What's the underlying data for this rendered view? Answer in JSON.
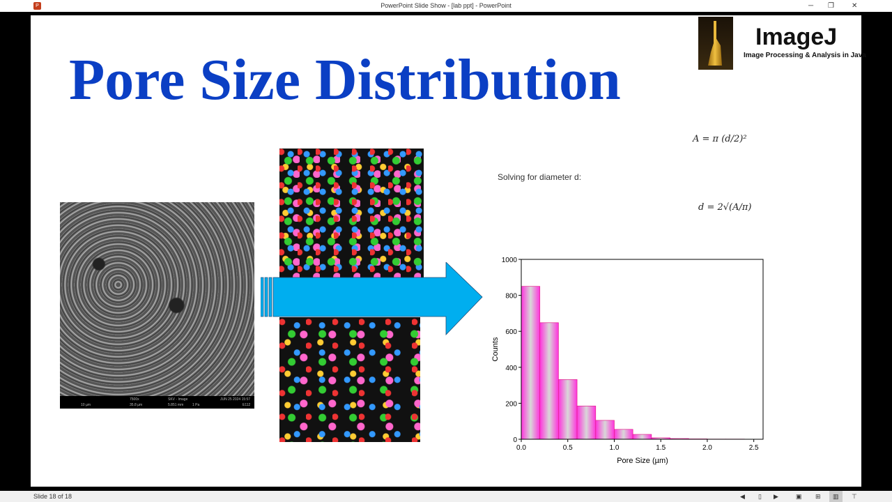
{
  "window": {
    "title": "PowerPoint Slide Show - [lab ppt] - PowerPoint",
    "app_icon": "P"
  },
  "slide": {
    "title": "Pore Size Distribution",
    "logo": {
      "name": "ImageJ",
      "subtitle": "Image Processing & Analysis in Java"
    },
    "formula_area": "A = π (d/2)²",
    "solving_text": "Solving for diameter d:",
    "formula_diameter": "d = 2√(A/π)",
    "sem_info": {
      "scale": "10 µm",
      "mag": "7500x",
      "hfw": "35.8 µm",
      "mode": "SKV - Image",
      "wd": "5.851 mm",
      "pressure": "1 Pa",
      "date": "JUN 25 2024 15:57",
      "id": "E112"
    }
  },
  "chart_data": {
    "type": "bar",
    "xlabel": "Pore Size (µm)",
    "ylabel": "Counts",
    "xlim": [
      0,
      2.6
    ],
    "ylim": [
      0,
      1000
    ],
    "xticks": [
      "0.0",
      "0.5",
      "1.0",
      "1.5",
      "2.0",
      "2.5"
    ],
    "yticks": [
      "0",
      "200",
      "400",
      "600",
      "800",
      "1000"
    ],
    "bin_width": 0.2,
    "bin_starts": [
      0.0,
      0.2,
      0.4,
      0.6,
      0.8,
      1.0,
      1.2,
      1.4,
      1.6,
      1.8,
      2.0,
      2.2
    ],
    "values": [
      850,
      648,
      332,
      185,
      105,
      55,
      27,
      8,
      4,
      2,
      1,
      1
    ],
    "bar_color": "#ff33cc",
    "grid": false
  },
  "statusbar": {
    "slide_counter": "Slide 18 of 18"
  }
}
